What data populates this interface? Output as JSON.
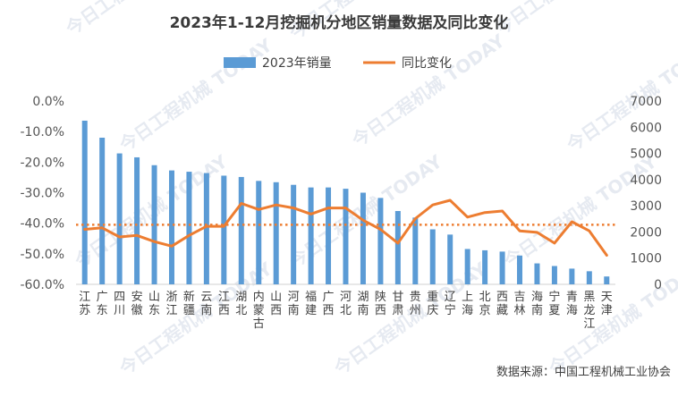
{
  "watermark": {
    "text": "今日工程机械 TODAY"
  },
  "source_note": "数据来源：中国工程机械工业协会",
  "chart_data": {
    "type": "bar",
    "title": "2023年1-12月挖掘机分地区销量数据及同比变化",
    "legend": {
      "position": "top"
    },
    "categories": [
      "江苏",
      "广东",
      "四川",
      "安徽",
      "山东",
      "浙江",
      "新疆",
      "云南",
      "江西",
      "湖北",
      "内蒙古",
      "山西",
      "河南",
      "福建",
      "广西",
      "河北",
      "湖南",
      "陕西",
      "甘肃",
      "贵州",
      "重庆",
      "辽宁",
      "上海",
      "北京",
      "西藏",
      "吉林",
      "海南",
      "宁夏",
      "青海",
      "黑龙江",
      "天津"
    ],
    "series": [
      {
        "name": "2023年销量",
        "type": "bar",
        "axis": "right",
        "color": "#5b9bd5",
        "values": [
          6250,
          5600,
          5000,
          4850,
          4550,
          4350,
          4300,
          4250,
          4150,
          4100,
          3950,
          3900,
          3800,
          3700,
          3700,
          3650,
          3500,
          3300,
          2800,
          2550,
          2100,
          1900,
          1350,
          1300,
          1250,
          1100,
          800,
          700,
          600,
          500,
          300
        ]
      },
      {
        "name": "同比变化",
        "type": "line",
        "axis": "left",
        "color": "#ed7d31",
        "values": [
          -42.0,
          -41.5,
          -44.5,
          -44.0,
          -46.0,
          -47.5,
          -44.0,
          -41.0,
          -41.0,
          -33.5,
          -35.5,
          -34.0,
          -35.0,
          -37.0,
          -35.0,
          -35.0,
          -39.0,
          -42.0,
          -46.5,
          -38.5,
          -34.0,
          -32.5,
          -38.0,
          -36.5,
          -36.0,
          -42.5,
          -43.0,
          -46.5,
          -39.5,
          -42.5,
          -50.5
        ]
      }
    ],
    "reference_line": {
      "value": -40.5,
      "axis": "left",
      "color": "#ed7d31",
      "style": "dotted"
    },
    "y_left": {
      "min": -60,
      "max": 0,
      "step": 10,
      "format": "percent_1dp"
    },
    "y_right": {
      "min": 0,
      "max": 7000,
      "step": 1000
    }
  }
}
